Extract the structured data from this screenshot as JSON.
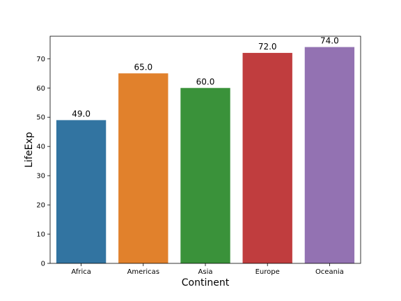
{
  "chart_data": {
    "type": "bar",
    "title": "",
    "xlabel": "Continent",
    "ylabel": "LifeExp",
    "categories": [
      "Africa",
      "Americas",
      "Asia",
      "Europe",
      "Oceania"
    ],
    "values": [
      49.0,
      65.0,
      60.0,
      72.0,
      74.0
    ],
    "data_labels": [
      "49.0",
      "65.0",
      "60.0",
      "72.0",
      "74.0"
    ],
    "colors": [
      "#3274a1",
      "#e1812c",
      "#3a923a",
      "#c03d3e",
      "#9372b2"
    ],
    "ylim": [
      0,
      77.7
    ],
    "yticks": [
      0,
      10,
      20,
      30,
      40,
      50,
      60,
      70
    ],
    "grid": false,
    "legend": "none"
  }
}
